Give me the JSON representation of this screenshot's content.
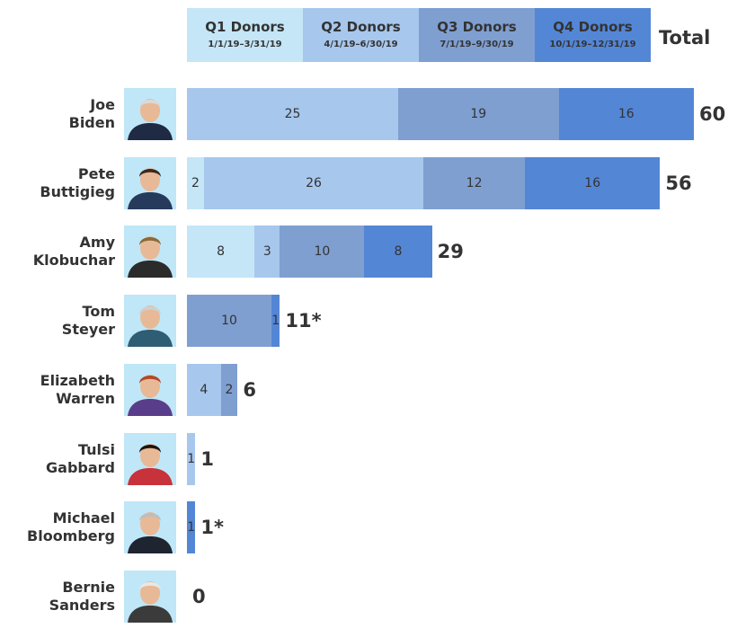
{
  "header": {
    "total_label": "Total"
  },
  "colors": {
    "q1": "#c4e6f7",
    "q2": "#a7c7ed",
    "q3": "#7f9fd1",
    "q4": "#5486d6",
    "photo_bg": "#bfe7f7",
    "text": "#333333"
  },
  "legend": [
    {
      "title": "Q1 Donors",
      "range": "1/1/19–3/31/19"
    },
    {
      "title": "Q2 Donors",
      "range": "4/1/19–6/30/19"
    },
    {
      "title": "Q3 Donors",
      "range": "7/1/19–9/30/19"
    },
    {
      "title": "Q4 Donors",
      "range": "10/1/19–12/31/19"
    }
  ],
  "chart_data": {
    "type": "bar",
    "orientation": "horizontal",
    "stacked": true,
    "categories": [
      "Joe Biden",
      "Pete Buttigieg",
      "Amy Klobuchar",
      "Tom Steyer",
      "Elizabeth Warren",
      "Tulsi Gabbard",
      "Michael Bloomberg",
      "Bernie Sanders"
    ],
    "series": [
      {
        "name": "Q1 Donors",
        "values": [
          0,
          2,
          8,
          0,
          0,
          0,
          0,
          0
        ]
      },
      {
        "name": "Q2 Donors",
        "values": [
          25,
          26,
          3,
          0,
          4,
          1,
          0,
          0
        ]
      },
      {
        "name": "Q3 Donors",
        "values": [
          19,
          12,
          10,
          10,
          2,
          0,
          0,
          0
        ]
      },
      {
        "name": "Q4 Donors",
        "values": [
          16,
          16,
          8,
          1,
          0,
          0,
          1,
          0
        ]
      }
    ],
    "totals": [
      "60",
      "56",
      "29",
      "11*",
      "6",
      "1",
      "1*",
      "0"
    ],
    "candidates": [
      {
        "first": "Joe",
        "last": "Biden"
      },
      {
        "first": "Pete",
        "last": "Buttigieg"
      },
      {
        "first": "Amy",
        "last": "Klobuchar"
      },
      {
        "first": "Tom",
        "last": "Steyer"
      },
      {
        "first": "Elizabeth",
        "last": "Warren"
      },
      {
        "first": "Tulsi",
        "last": "Gabbard"
      },
      {
        "first": "Michael",
        "last": "Bloomberg"
      },
      {
        "first": "Bernie",
        "last": "Sanders"
      }
    ],
    "xlim": [
      0,
      60
    ],
    "grid": false,
    "legend": "top"
  }
}
